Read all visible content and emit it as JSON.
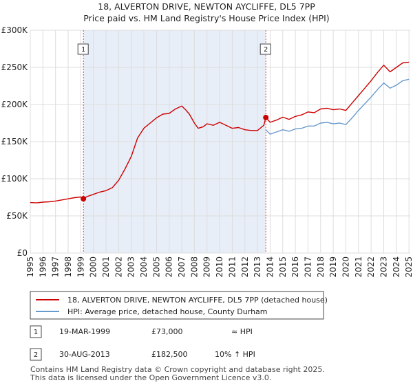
{
  "chart_data": {
    "type": "line",
    "title": "18, ALVERTON DRIVE, NEWTON AYCLIFFE, DL5 7PP",
    "subtitle": "Price paid vs. HM Land Registry's House Price Index (HPI)",
    "xlabel": "",
    "ylabel": "",
    "xlim": [
      1995,
      2025.1
    ],
    "ylim": [
      0,
      300000
    ],
    "y_ticks": [
      0,
      50000,
      100000,
      150000,
      200000,
      250000,
      300000
    ],
    "y_tick_labels": [
      "£0",
      "£50K",
      "£100K",
      "£150K",
      "£200K",
      "£250K",
      "£300K"
    ],
    "x_ticks": [
      1995,
      1996,
      1997,
      1998,
      1999,
      2000,
      2001,
      2002,
      2003,
      2004,
      2005,
      2006,
      2007,
      2008,
      2009,
      2010,
      2011,
      2012,
      2013,
      2014,
      2015,
      2016,
      2017,
      2018,
      2019,
      2020,
      2021,
      2022,
      2023,
      2024,
      2025
    ],
    "grid": true,
    "highlight_span": [
      1999.21,
      2013.66
    ],
    "series": [
      {
        "name": "18, ALVERTON DRIVE, NEWTON AYCLIFFE, DL5 7PP (detached house)",
        "color": "#cc0000",
        "x": [
          1995.0,
          1995.5,
          1996.0,
          1996.5,
          1997.0,
          1997.5,
          1998.0,
          1998.5,
          1999.0,
          1999.21,
          1999.5,
          2000.0,
          2000.5,
          2001.0,
          2001.5,
          2002.0,
          2002.5,
          2003.0,
          2003.5,
          2004.0,
          2004.5,
          2005.0,
          2005.5,
          2006.0,
          2006.5,
          2007.0,
          2007.3,
          2007.6,
          2008.0,
          2008.3,
          2008.7,
          2009.0,
          2009.5,
          2010.0,
          2010.5,
          2011.0,
          2011.5,
          2012.0,
          2012.5,
          2013.0,
          2013.5,
          2013.66,
          2014.0,
          2014.5,
          2015.0,
          2015.5,
          2016.0,
          2016.5,
          2017.0,
          2017.5,
          2018.0,
          2018.5,
          2019.0,
          2019.5,
          2020.0,
          2020.5,
          2021.0,
          2021.5,
          2022.0,
          2022.5,
          2023.0,
          2023.5,
          2024.0,
          2024.5,
          2025.0
        ],
        "values": [
          68000,
          67500,
          68500,
          69000,
          70000,
          71500,
          73000,
          74500,
          75500,
          73000,
          76000,
          79000,
          82000,
          84000,
          88000,
          98000,
          113000,
          130000,
          155000,
          168000,
          175000,
          182000,
          187000,
          188000,
          194000,
          198000,
          193000,
          187000,
          175000,
          168000,
          170000,
          174000,
          172000,
          176000,
          172000,
          168000,
          169000,
          166000,
          165000,
          165000,
          172000,
          182500,
          176000,
          179000,
          183000,
          180000,
          184000,
          186000,
          190000,
          189000,
          194000,
          195000,
          193000,
          194000,
          192000,
          202000,
          212000,
          222000,
          232000,
          243000,
          253000,
          244000,
          250000,
          256000,
          257000
        ]
      },
      {
        "name": "HPI: Average price, detached house, County Durham",
        "color": "#6699cc",
        "x": [
          2013.66,
          2014.0,
          2014.5,
          2015.0,
          2015.5,
          2016.0,
          2016.5,
          2017.0,
          2017.5,
          2018.0,
          2018.5,
          2019.0,
          2019.5,
          2020.0,
          2020.5,
          2021.0,
          2021.5,
          2022.0,
          2022.5,
          2023.0,
          2023.5,
          2024.0,
          2024.5,
          2025.0
        ],
        "values": [
          166000,
          160000,
          163000,
          166000,
          164000,
          167000,
          168000,
          171000,
          171000,
          175000,
          176000,
          174000,
          175000,
          173000,
          182000,
          192000,
          201000,
          210000,
          220000,
          229000,
          222000,
          226000,
          232000,
          234000
        ]
      }
    ],
    "sales": [
      {
        "num": "1",
        "x": 1999.21,
        "value": 73000
      },
      {
        "num": "2",
        "x": 2013.66,
        "value": 182500
      }
    ]
  },
  "legend": {
    "items": [
      {
        "label": "18, ALVERTON DRIVE, NEWTON AYCLIFFE, DL5 7PP (detached house)",
        "color": "#cc0000"
      },
      {
        "label": "HPI: Average price, detached house, County Durham",
        "color": "#6699cc"
      }
    ]
  },
  "transactions": [
    {
      "num": "1",
      "date": "19-MAR-1999",
      "price": "£73,000",
      "hpi": "≈ HPI"
    },
    {
      "num": "2",
      "date": "30-AUG-2013",
      "price": "£182,500",
      "hpi": "10% ↑ HPI"
    }
  ],
  "footer": {
    "line1": "Contains HM Land Registry data © Crown copyright and database right 2025.",
    "line2": "This data is licensed under the Open Government Licence v3.0."
  }
}
